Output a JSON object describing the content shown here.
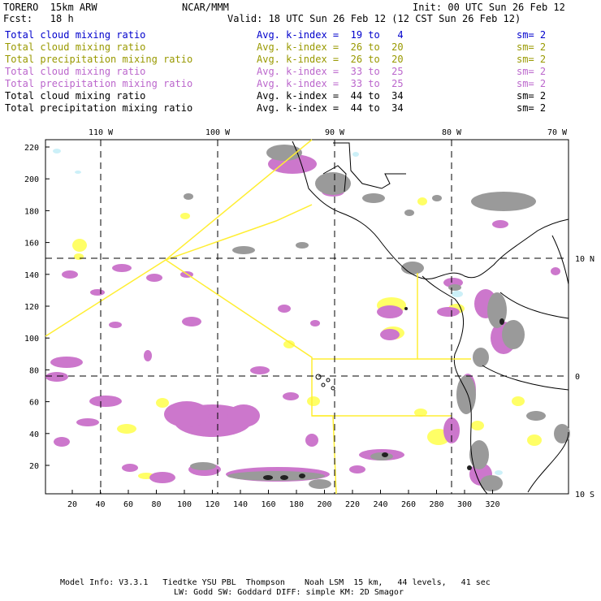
{
  "header": {
    "model": "TORERO  15km ARW",
    "org": "NCAR/MMM",
    "init": "Init: 00 UTC Sun 26 Feb 12",
    "fcst": "Fcst:   18 h",
    "valid": "Valid: 18 UTC Sun 26 Feb 12 (12 CST Sun 26 Feb 12)"
  },
  "fields": [
    {
      "name": "Total cloud mixing ratio",
      "avg": "Avg. k-index =  19 to   4",
      "sm": "sm= 2",
      "color": "#0000cc"
    },
    {
      "name": "Total cloud mixing ratio",
      "avg": "Avg. k-index =  26 to  20",
      "sm": "sm= 2",
      "color": "#999900"
    },
    {
      "name": "Total precipitation mixing ratio",
      "avg": "Avg. k-index =  26 to  20",
      "sm": "sm= 2",
      "color": "#999900"
    },
    {
      "name": "Total cloud mixing ratio",
      "avg": "Avg. k-index =  33 to  25",
      "sm": "sm= 2",
      "color": "#bb66cc"
    },
    {
      "name": "Total precipitation mixing ratio",
      "avg": "Avg. k-index =  33 to  25",
      "sm": "sm= 2",
      "color": "#bb66cc"
    },
    {
      "name": "Total cloud mixing ratio",
      "avg": "Avg. k-index =  44 to  34",
      "sm": "sm= 2",
      "color": "#000000"
    },
    {
      "name": "Total precipitation mixing ratio",
      "avg": "Avg. k-index =  44 to  34",
      "sm": "sm= 2",
      "color": "#000000"
    }
  ],
  "axes": {
    "x_ticks": [
      "20",
      "40",
      "60",
      "80",
      "100",
      "120",
      "140",
      "160",
      "180",
      "200",
      "220",
      "240",
      "260",
      "280",
      "300",
      "320"
    ],
    "y_ticks": [
      "20",
      "40",
      "60",
      "80",
      "100",
      "120",
      "140",
      "160",
      "180",
      "200",
      "220"
    ],
    "lon_labels": [
      "110 W",
      "100 W",
      "90 W",
      "80 W",
      "70 W"
    ],
    "lat_labels": [
      "10 N",
      "0",
      "10 S"
    ]
  },
  "footer": {
    "line1": "Model Info: V3.3.1   Tiedtke YSU PBL  Thompson    Noah LSM  15 km,   44 levels,   41 sec",
    "line2": "LW: Godd SW: Goddard DIFF: simple KM: 2D Smagor"
  },
  "colors": {
    "cloud_low": "#ccf0f8",
    "cloud_mid": "#ffff66",
    "cloud_high": "#cc77cc",
    "cloud_top": "#999999",
    "cloud_core": "#222222",
    "borders": "#ffee33"
  }
}
